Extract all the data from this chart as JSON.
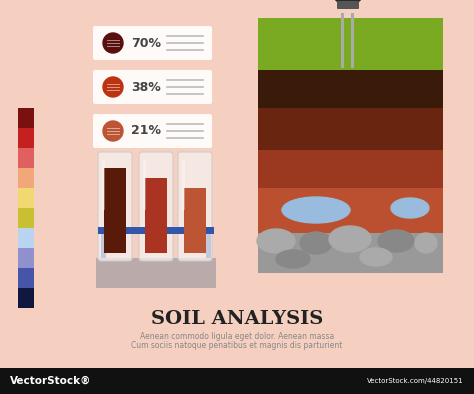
{
  "background_color": "#f5cfc0",
  "title": "SOIL ANALYSIS",
  "subtitle_line1": "Aenean commodo ligula eget dolor. Aenean massa",
  "subtitle_line2": "Cum sociis natoque penatibus et magnis dis parturient",
  "color_bar_colors": [
    "#7a1010",
    "#c42020",
    "#e06060",
    "#f0a878",
    "#f2d870",
    "#c8c030",
    "#b8d4f0",
    "#9090cc",
    "#4455aa",
    "#101840"
  ],
  "stat_labels": [
    "70%",
    "38%",
    "21%"
  ],
  "stat_circle_colors": [
    "#5a0f0f",
    "#bb3311",
    "#bb5533"
  ],
  "tube_fill_colors": [
    "#5a1a0a",
    "#aa3322",
    "#bb5533"
  ],
  "soil_layer_colors": [
    "#7aaa22",
    "#3a1a08",
    "#6a2510",
    "#9a3820",
    "#bb5030",
    "#cc7050",
    "#b04030",
    "#999999",
    "#777777"
  ],
  "water_color": "#99bbdd",
  "rock_color_light": "#aaaaaa",
  "rock_color_dark": "#888888",
  "title_fontsize": 14,
  "subtitle_fontsize": 5.5,
  "wm_bar_color": "#111111"
}
